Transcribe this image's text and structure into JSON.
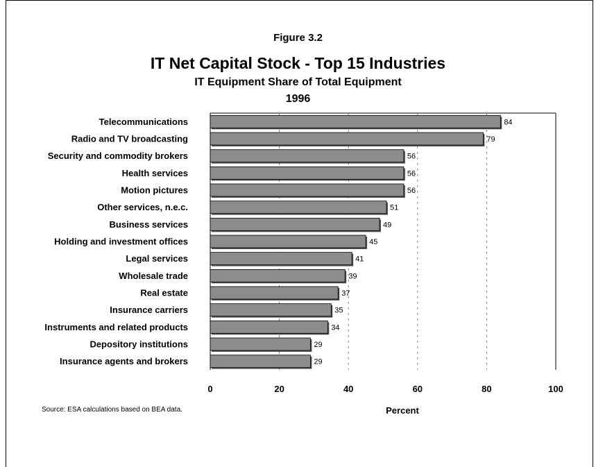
{
  "figure_label": "Figure 3.2",
  "source_note": "Source:  ESA calculations based on BEA data.",
  "colors": {
    "bar": "#8c8c8c",
    "bar_edge": "#000000",
    "bar_shadow": "#555555",
    "grid": "#666666"
  },
  "chart_data": {
    "type": "bar",
    "orientation": "horizontal",
    "title": "IT Net Capital Stock - Top 15 Industries",
    "subtitle": "IT Equipment Share of Total Equipment",
    "year": "1996",
    "xlabel": "Percent",
    "ylabel": "",
    "xlim": [
      0,
      100
    ],
    "xticks": [
      "0",
      "20",
      "40",
      "60",
      "80",
      "100"
    ],
    "grid": "vertical dashed",
    "categories": [
      "Telecommunications",
      "Radio and TV broadcasting",
      "Security and commodity brokers",
      "Health services",
      "Motion pictures",
      "Other services, n.e.c.",
      "Business services",
      "Holding and investment offices",
      "Legal services",
      "Wholesale trade",
      "Real estate",
      "Insurance carriers",
      "Instruments and related products",
      "Depository institutions",
      "Insurance agents and brokers"
    ],
    "values": [
      84,
      79,
      56,
      56,
      56,
      51,
      49,
      45,
      41,
      39,
      37,
      35,
      34,
      29,
      29
    ]
  }
}
